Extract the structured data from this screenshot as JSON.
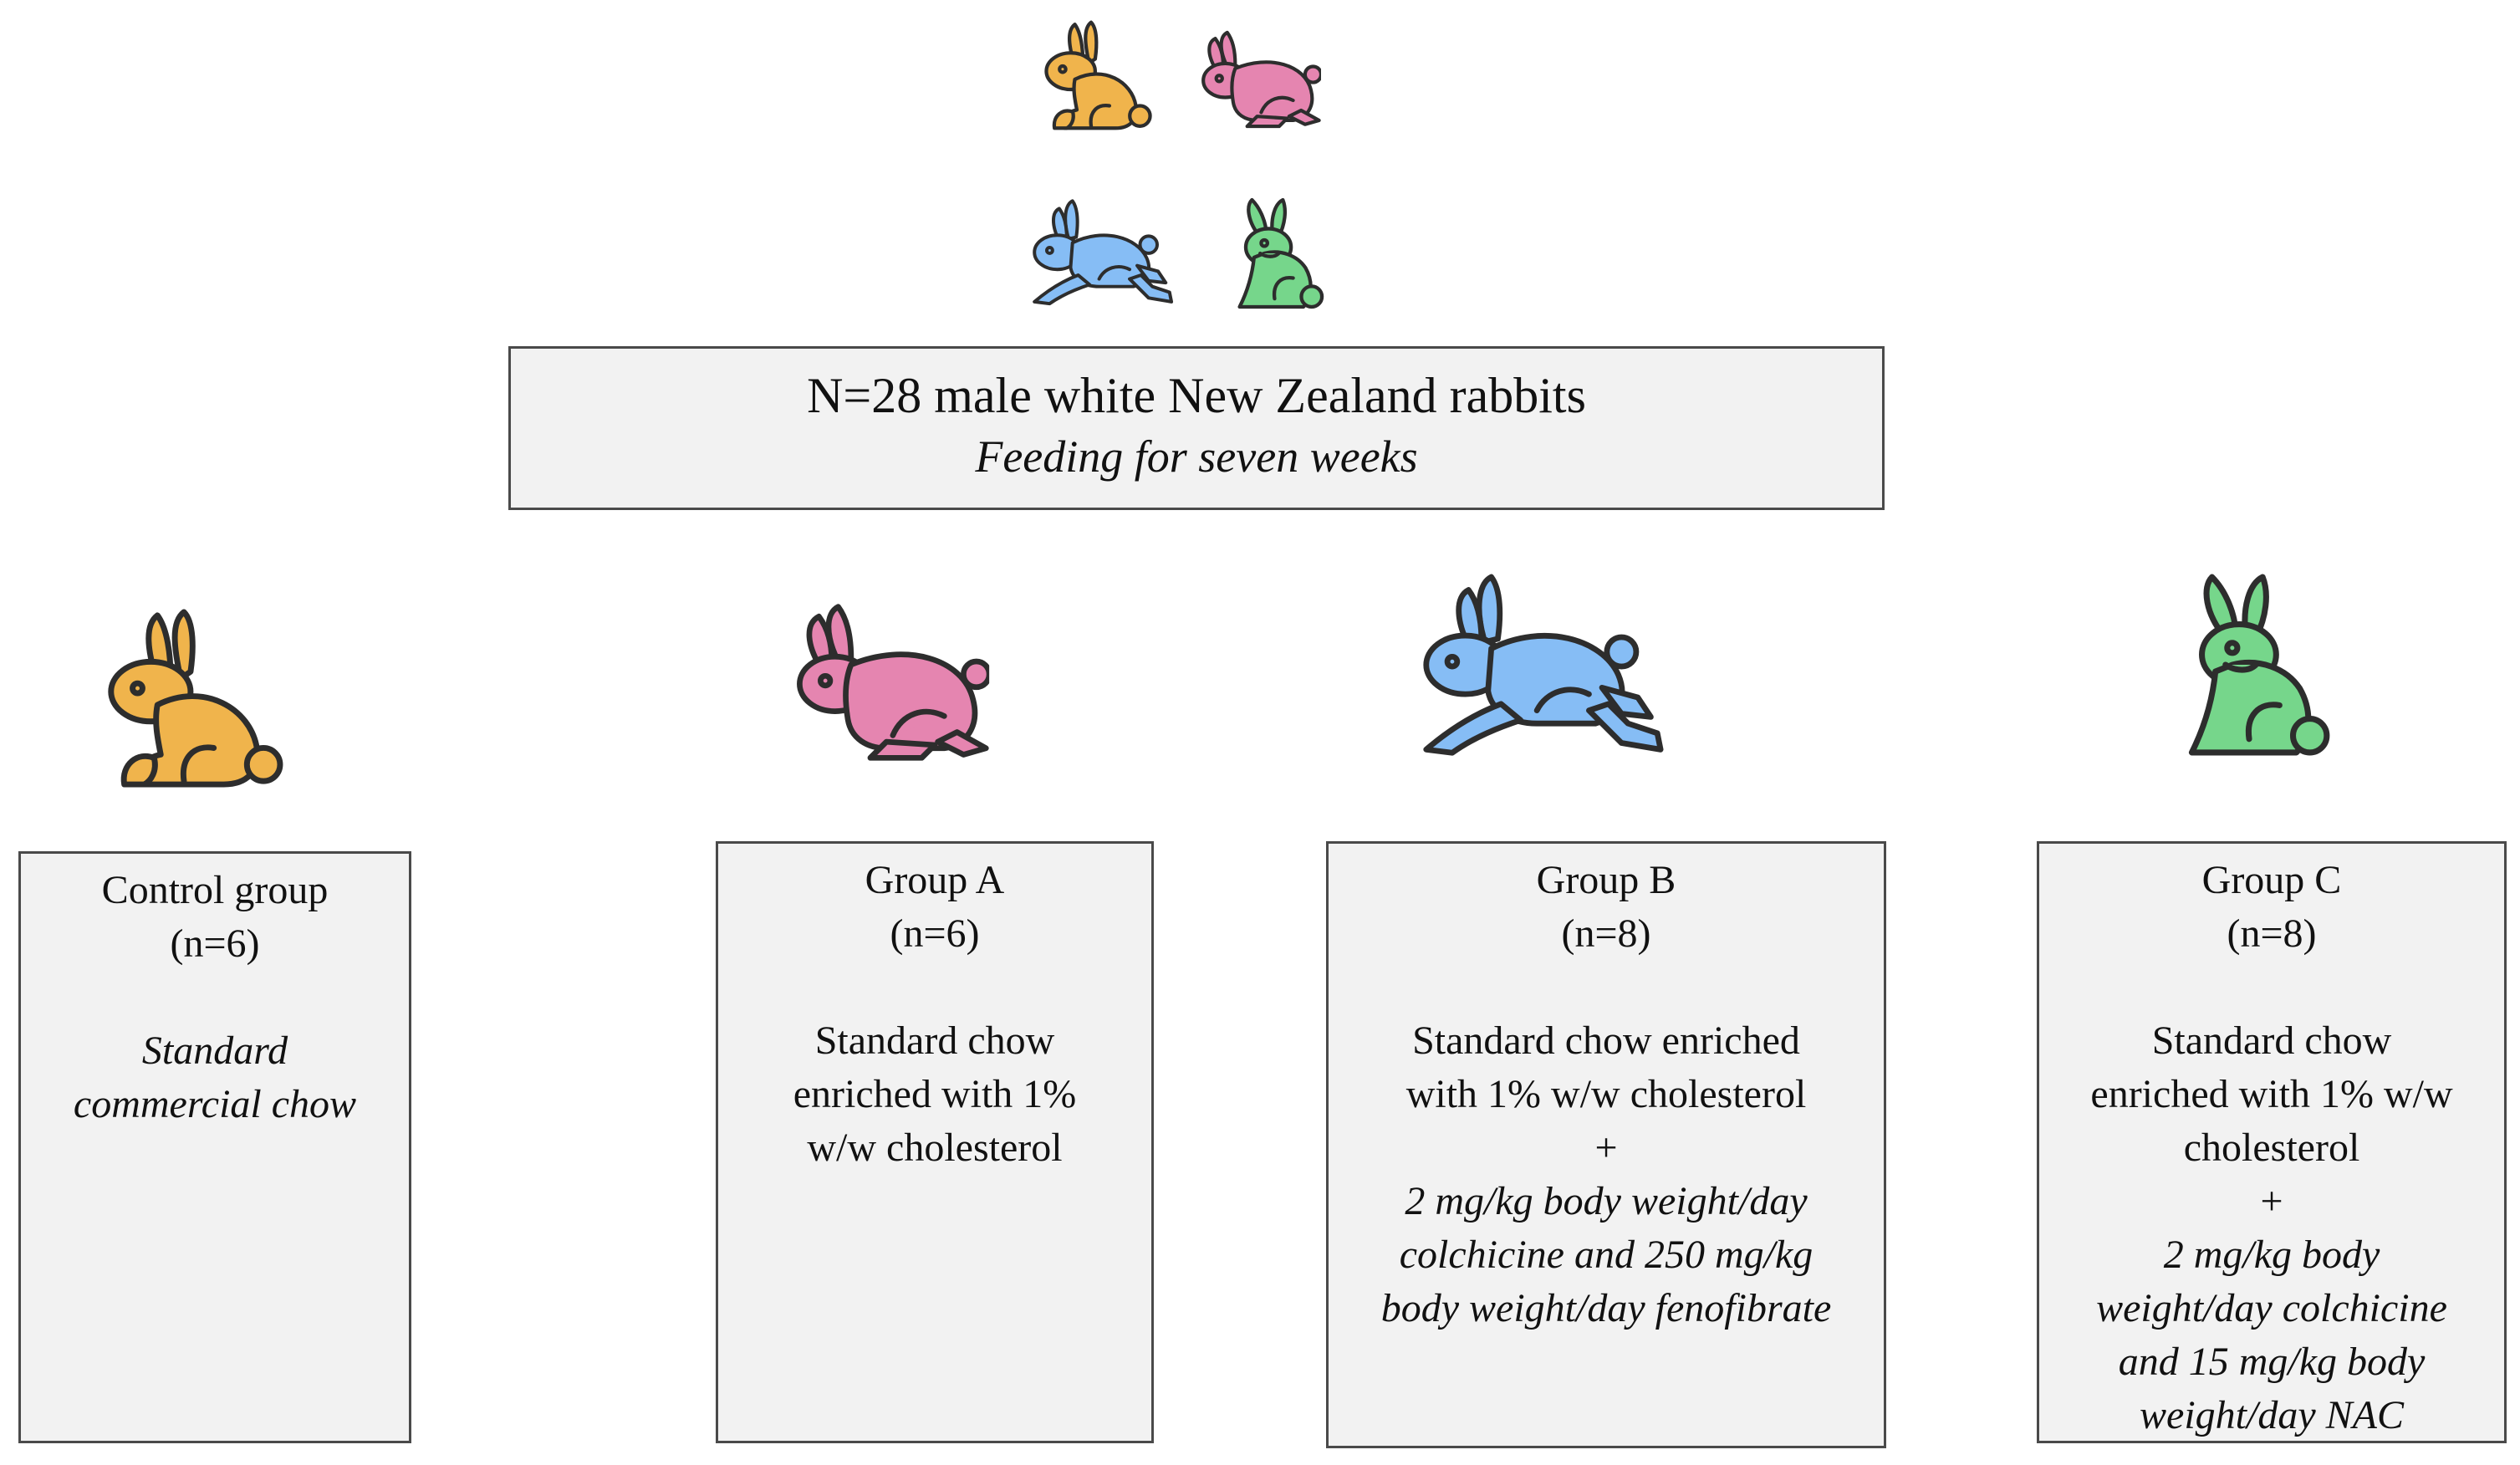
{
  "header": {
    "title": "N=28 male white New Zealand rabbits",
    "subtitle": "Feeding for seven weeks"
  },
  "colors": {
    "orange": "#F0B44C",
    "pink": "#E585B0",
    "blue": "#86BDF5",
    "green": "#76D68B",
    "outline": "#2d2d2d",
    "box_fill": "#f2f2f2"
  },
  "icons": {
    "sitting": "sitting-rabbit-icon",
    "running": "running-rabbit-icon",
    "leaping": "leaping-rabbit-icon",
    "upright": "upright-rabbit-icon"
  },
  "groups": [
    {
      "name": "Control group",
      "n": "(n=6)",
      "diet": [
        "Standard",
        "commercial chow"
      ]
    },
    {
      "name": "Group A",
      "n": "(n=6)",
      "diet": [
        "Standard chow",
        "enriched with 1%",
        "w/w cholesterol"
      ]
    },
    {
      "name": "Group B",
      "n": "(n=8)",
      "diet": [
        "Standard chow enriched",
        "with 1% w/w cholesterol"
      ],
      "plus": "+",
      "treatment": [
        "2 mg/kg body weight/day",
        "colchicine and 250 mg/kg",
        "body weight/day fenofibrate"
      ]
    },
    {
      "name": "Group C",
      "n": "(n=8)",
      "diet": [
        "Standard chow",
        "enriched with 1% w/w",
        "cholesterol"
      ],
      "plus": "+",
      "treatment": [
        "2 mg/kg body",
        "weight/day colchicine",
        "and 15 mg/kg body",
        "weight/day NAC"
      ]
    }
  ]
}
